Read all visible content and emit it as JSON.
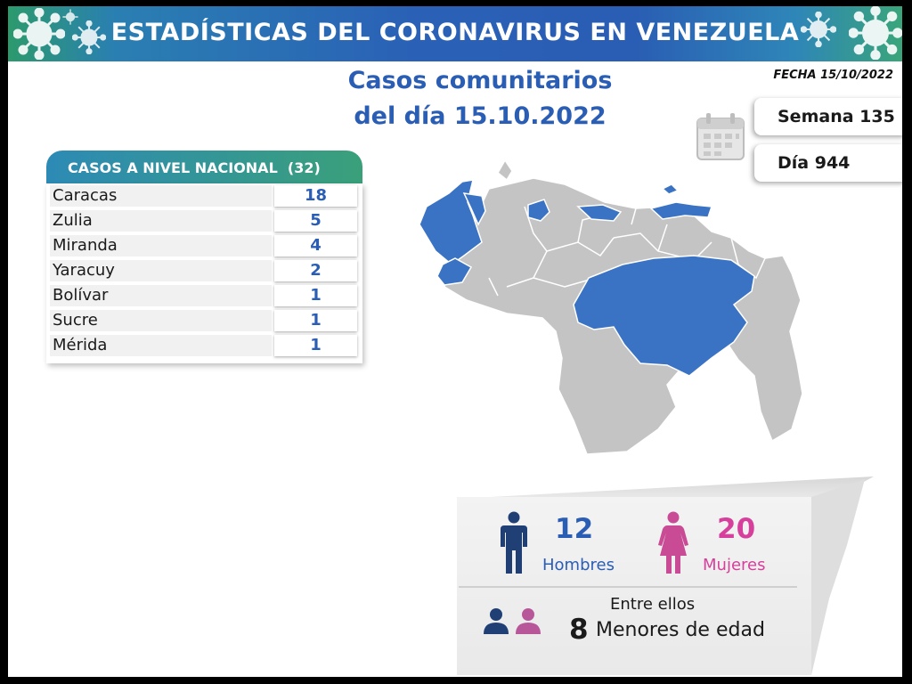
{
  "header": {
    "title": "ESTADÍSTICAS DEL CORONAVIRUS EN VENEZUELA"
  },
  "date_label": "FECHA 15/10/2022",
  "main_title": {
    "line1": "Casos comunitarios",
    "line2": "del día 15.10.2022"
  },
  "week_label": "Semana 135",
  "day_label": "Día 944",
  "national_cases": {
    "header_label": "CASOS A NIVEL NACIONAL",
    "total": "(32)",
    "rows": [
      {
        "state": "Caracas",
        "cases": "18"
      },
      {
        "state": "Zulia",
        "cases": "5"
      },
      {
        "state": "Miranda",
        "cases": "4"
      },
      {
        "state": "Yaracuy",
        "cases": "2"
      },
      {
        "state": "Bolívar",
        "cases": "1"
      },
      {
        "state": "Sucre",
        "cases": "1"
      },
      {
        "state": "Mérida",
        "cases": "1"
      }
    ]
  },
  "gender": {
    "men_count": "12",
    "men_label": "Hombres",
    "women_count": "20",
    "women_label": "Mujeres",
    "among_label": "Entre ellos",
    "minors_count": "8",
    "minors_label": "Menores de edad"
  },
  "colors": {
    "brand_blue": "#2a5db4",
    "brand_green": "#3aa07a",
    "women_pink": "#d63f9b",
    "map_gray": "#c4c4c4",
    "map_highlight": "#3a72c4"
  },
  "icons": [
    "virus-icon",
    "calendar-icon",
    "man-icon",
    "woman-icon",
    "boy-icon",
    "girl-icon"
  ]
}
